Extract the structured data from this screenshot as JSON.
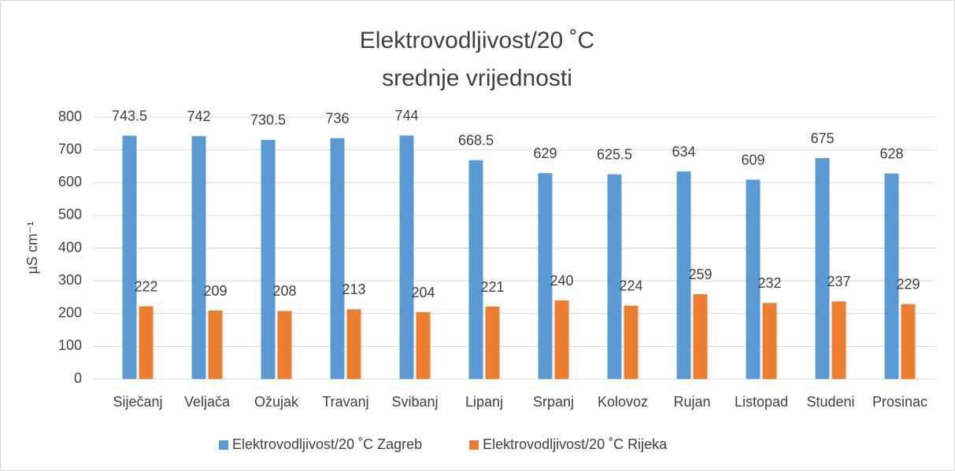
{
  "chart_data": {
    "type": "bar",
    "title": "Elektrovodljivost/20 ˚C",
    "subtitle": "srednje vrijednosti",
    "y_label": "µS cm⁻¹",
    "categories": [
      "Siječanj",
      "Veljača",
      "Ožujak",
      "Travanj",
      "Svibanj",
      "Lipanj",
      "Srpanj",
      "Kolovoz",
      "Rujan",
      "Listopad",
      "Studeni",
      "Prosinac"
    ],
    "series": [
      {
        "name": "Elektrovodljivost/20 ˚C Zagreb",
        "color": "#5b9bd5",
        "values": [
          743.5,
          742,
          730.5,
          736,
          744,
          668.5,
          629,
          625.5,
          634,
          609,
          675,
          628
        ]
      },
      {
        "name": "Elektrovodljivost/20 ˚C Rijeka",
        "color": "#ed7d31",
        "values": [
          222,
          209,
          208,
          213,
          204,
          221,
          240,
          224,
          259,
          232,
          237,
          229
        ]
      }
    ],
    "ylim": [
      0,
      800
    ],
    "yticks": [
      0,
      100,
      200,
      300,
      400,
      500,
      600,
      700,
      800
    ],
    "grid": true,
    "legend": "bottom"
  }
}
